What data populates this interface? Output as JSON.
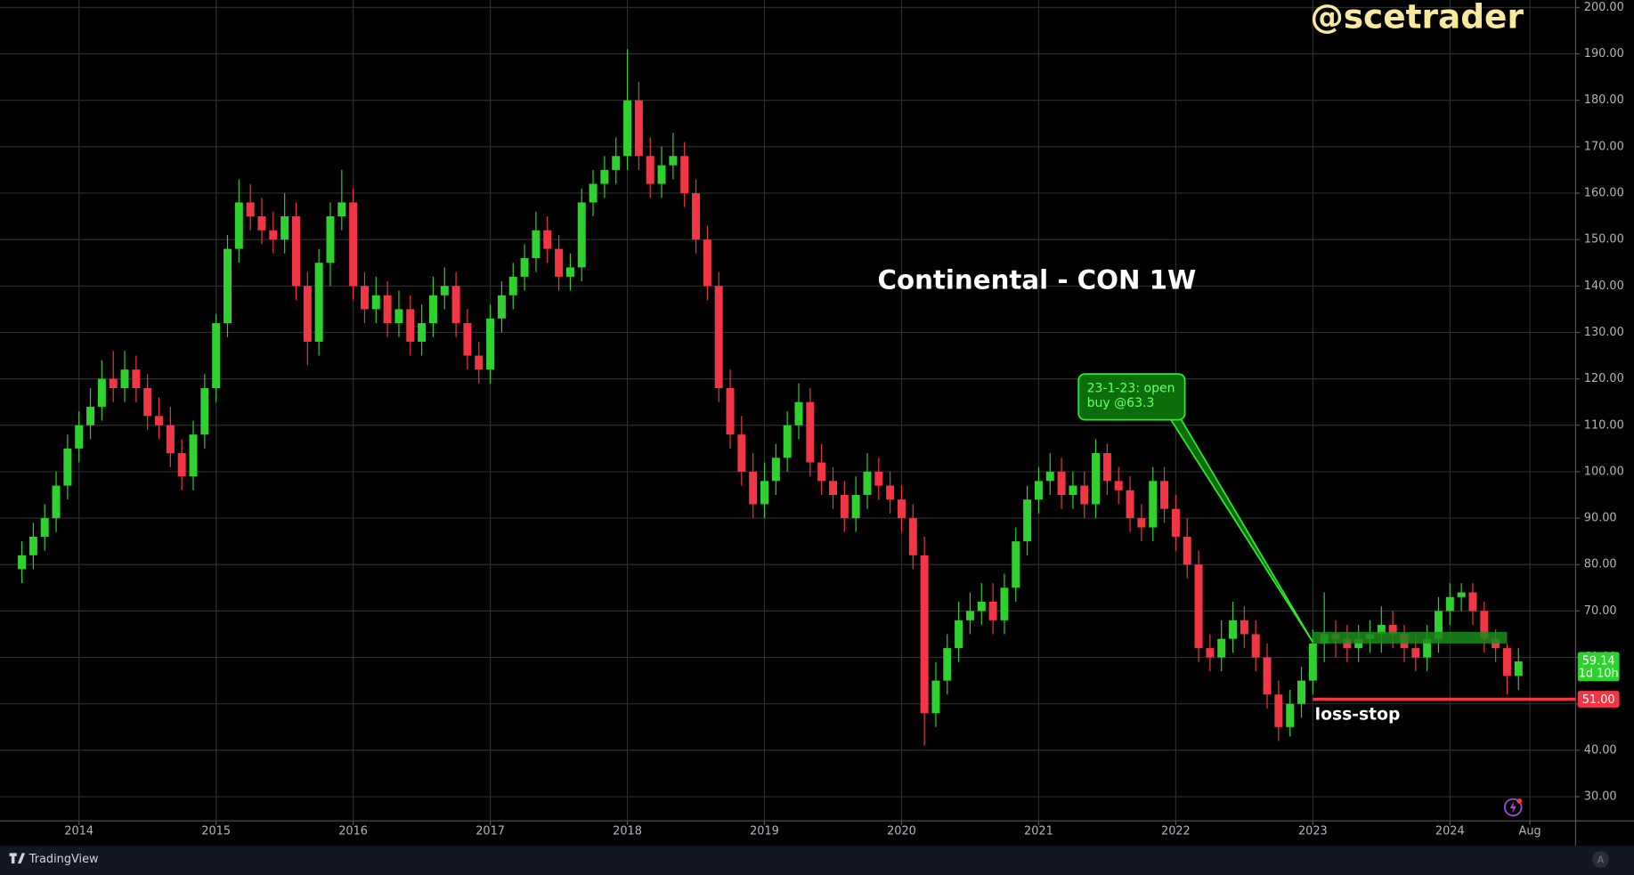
{
  "chart_data": {
    "type": "candlestick",
    "title": "Continental - CON 1W",
    "watermark": "@scetrader",
    "x": [
      "2013-08",
      "2013-09",
      "2013-10",
      "2013-11",
      "2013-12",
      "2014-01",
      "2014-02",
      "2014-03",
      "2014-04",
      "2014-05",
      "2014-06",
      "2014-07",
      "2014-08",
      "2014-09",
      "2014-10",
      "2014-11",
      "2014-12",
      "2015-01",
      "2015-02",
      "2015-03",
      "2015-04",
      "2015-05",
      "2015-06",
      "2015-07",
      "2015-08",
      "2015-09",
      "2015-10",
      "2015-11",
      "2015-12",
      "2016-01",
      "2016-02",
      "2016-03",
      "2016-04",
      "2016-05",
      "2016-06",
      "2016-07",
      "2016-08",
      "2016-09",
      "2016-10",
      "2016-11",
      "2016-12",
      "2017-01",
      "2017-02",
      "2017-03",
      "2017-04",
      "2017-05",
      "2017-06",
      "2017-07",
      "2017-08",
      "2017-09",
      "2017-10",
      "2017-11",
      "2017-12",
      "2018-01",
      "2018-02",
      "2018-03",
      "2018-04",
      "2018-05",
      "2018-06",
      "2018-07",
      "2018-08",
      "2018-09",
      "2018-10",
      "2018-11",
      "2018-12",
      "2019-01",
      "2019-02",
      "2019-03",
      "2019-04",
      "2019-05",
      "2019-06",
      "2019-07",
      "2019-08",
      "2019-09",
      "2019-10",
      "2019-11",
      "2019-12",
      "2020-01",
      "2020-02",
      "2020-03",
      "2020-04",
      "2020-05",
      "2020-06",
      "2020-07",
      "2020-08",
      "2020-09",
      "2020-10",
      "2020-11",
      "2020-12",
      "2021-01",
      "2021-02",
      "2021-03",
      "2021-04",
      "2021-05",
      "2021-06",
      "2021-07",
      "2021-08",
      "2021-09",
      "2021-10",
      "2021-11",
      "2021-12",
      "2022-01",
      "2022-02",
      "2022-03",
      "2022-04",
      "2022-05",
      "2022-06",
      "2022-07",
      "2022-08",
      "2022-09",
      "2022-10",
      "2022-11",
      "2022-12",
      "2023-01",
      "2023-02",
      "2023-03",
      "2023-04",
      "2023-05",
      "2023-06",
      "2023-07",
      "2023-08",
      "2023-09",
      "2023-10",
      "2023-11",
      "2023-12",
      "2024-01",
      "2024-02",
      "2024-03",
      "2024-04",
      "2024-05",
      "2024-06",
      "2024-07"
    ],
    "open": [
      79,
      82,
      86,
      90,
      97,
      105,
      110,
      114,
      120,
      118,
      122,
      118,
      112,
      110,
      104,
      99,
      108,
      118,
      132,
      148,
      158,
      155,
      152,
      150,
      155,
      140,
      128,
      145,
      155,
      158,
      140,
      135,
      138,
      132,
      135,
      128,
      132,
      138,
      140,
      132,
      125,
      122,
      133,
      138,
      142,
      146,
      152,
      148,
      142,
      144,
      158,
      162,
      165,
      168,
      180,
      168,
      162,
      166,
      168,
      160,
      150,
      140,
      118,
      108,
      100,
      93,
      98,
      103,
      110,
      115,
      102,
      98,
      95,
      90,
      95,
      100,
      97,
      94,
      90,
      82,
      48,
      55,
      62,
      68,
      70,
      72,
      68,
      75,
      85,
      94,
      98,
      100,
      95,
      97,
      93,
      104,
      98,
      96,
      90,
      88,
      98,
      92,
      86,
      80,
      62,
      60,
      64,
      68,
      65,
      60,
      52,
      45,
      50,
      55,
      63,
      65,
      64,
      62,
      64,
      65,
      67,
      65,
      62,
      60,
      64,
      70,
      73,
      74,
      70,
      64,
      62,
      56
    ],
    "high": [
      85,
      89,
      93,
      100,
      108,
      113,
      118,
      124,
      126,
      126,
      125,
      121,
      116,
      114,
      107,
      111,
      121,
      134,
      151,
      163,
      162,
      159,
      156,
      160,
      158,
      143,
      148,
      158,
      165,
      161,
      143,
      142,
      141,
      139,
      138,
      136,
      142,
      144,
      143,
      135,
      128,
      136,
      141,
      145,
      149,
      156,
      155,
      151,
      147,
      161,
      165,
      168,
      172,
      191,
      184,
      172,
      170,
      173,
      171,
      163,
      153,
      143,
      122,
      112,
      104,
      102,
      106,
      113,
      119,
      118,
      106,
      101,
      98,
      99,
      104,
      103,
      100,
      97,
      93,
      86,
      59,
      65,
      72,
      74,
      76,
      76,
      78,
      88,
      97,
      101,
      104,
      103,
      100,
      100,
      107,
      106,
      101,
      99,
      93,
      101,
      101,
      95,
      90,
      83,
      65,
      68,
      72,
      71,
      68,
      63,
      55,
      53,
      58,
      66,
      74,
      68,
      67,
      67,
      68,
      71,
      70,
      67,
      65,
      67,
      73,
      76,
      76,
      76,
      72,
      66,
      63,
      62
    ],
    "low": [
      76,
      79,
      83,
      87,
      94,
      102,
      107,
      111,
      115,
      115,
      115,
      109,
      107,
      101,
      96,
      96,
      105,
      115,
      129,
      145,
      152,
      149,
      147,
      147,
      137,
      123,
      125,
      140,
      152,
      137,
      132,
      132,
      129,
      129,
      125,
      125,
      129,
      135,
      129,
      122,
      119,
      119,
      130,
      135,
      139,
      143,
      145,
      139,
      139,
      141,
      155,
      159,
      162,
      165,
      165,
      159,
      159,
      163,
      157,
      147,
      137,
      115,
      105,
      97,
      90,
      90,
      95,
      100,
      107,
      99,
      95,
      92,
      87,
      87,
      92,
      94,
      91,
      87,
      79,
      41,
      45,
      52,
      59,
      65,
      67,
      65,
      65,
      72,
      82,
      91,
      95,
      92,
      92,
      90,
      90,
      95,
      93,
      87,
      85,
      85,
      89,
      83,
      77,
      59,
      57,
      57,
      61,
      62,
      57,
      49,
      42,
      43,
      47,
      52,
      59,
      60,
      59,
      59,
      61,
      61,
      62,
      59,
      57,
      57,
      61,
      67,
      70,
      67,
      61,
      59,
      52,
      53
    ],
    "close": [
      82,
      86,
      90,
      97,
      105,
      110,
      114,
      120,
      118,
      122,
      118,
      112,
      110,
      104,
      99,
      108,
      118,
      132,
      148,
      158,
      155,
      152,
      150,
      155,
      140,
      128,
      145,
      155,
      158,
      140,
      135,
      138,
      132,
      135,
      128,
      132,
      138,
      140,
      132,
      125,
      122,
      133,
      138,
      142,
      146,
      152,
      148,
      142,
      144,
      158,
      162,
      165,
      168,
      180,
      168,
      162,
      166,
      168,
      160,
      150,
      140,
      118,
      108,
      100,
      93,
      98,
      103,
      110,
      115,
      102,
      98,
      95,
      90,
      95,
      100,
      97,
      94,
      90,
      82,
      48,
      55,
      62,
      68,
      70,
      72,
      68,
      75,
      85,
      94,
      98,
      100,
      95,
      97,
      93,
      104,
      98,
      96,
      90,
      88,
      98,
      92,
      86,
      80,
      62,
      60,
      64,
      68,
      65,
      60,
      52,
      45,
      50,
      55,
      63,
      65,
      64,
      62,
      64,
      65,
      67,
      65,
      62,
      60,
      64,
      70,
      73,
      74,
      70,
      64,
      62,
      56,
      59.14
    ],
    "up_color": "#2fd12f",
    "down_color": "#f23645",
    "xlim": [
      "2013-07",
      "2024-12"
    ],
    "xticks": [
      {
        "value": "2014-01",
        "label": "2014"
      },
      {
        "value": "2015-01",
        "label": "2015"
      },
      {
        "value": "2016-01",
        "label": "2016"
      },
      {
        "value": "2017-01",
        "label": "2017"
      },
      {
        "value": "2018-01",
        "label": "2018"
      },
      {
        "value": "2019-01",
        "label": "2019"
      },
      {
        "value": "2020-01",
        "label": "2020"
      },
      {
        "value": "2021-01",
        "label": "2021"
      },
      {
        "value": "2022-01",
        "label": "2022"
      },
      {
        "value": "2023-01",
        "label": "2023"
      },
      {
        "value": "2024-01",
        "label": "2024"
      },
      {
        "value": "2024-08",
        "label": "Aug"
      }
    ],
    "ylim": [
      24.8,
      201.6
    ],
    "yticks": [
      {
        "value": 30,
        "label": "30.00"
      },
      {
        "value": 40,
        "label": "40.00"
      },
      {
        "value": 50,
        "label": "50.00"
      },
      {
        "value": 60,
        "label": "60.00"
      },
      {
        "value": 70,
        "label": "70.00"
      },
      {
        "value": 80,
        "label": "80.00"
      },
      {
        "value": 90,
        "label": "90.00"
      },
      {
        "value": 100,
        "label": "100.00"
      },
      {
        "value": 110,
        "label": "110.00"
      },
      {
        "value": 120,
        "label": "120.00"
      },
      {
        "value": 130,
        "label": "130.00"
      },
      {
        "value": 140,
        "label": "140.00"
      },
      {
        "value": 150,
        "label": "150.00"
      },
      {
        "value": 160,
        "label": "160.00"
      },
      {
        "value": 170,
        "label": "170.00"
      },
      {
        "value": 180,
        "label": "180.00"
      },
      {
        "value": 190,
        "label": "190.00"
      },
      {
        "value": 200,
        "label": "200.00"
      }
    ],
    "grid": true,
    "last_price": 59.14,
    "countdown": "1d 10h",
    "zone": {
      "from": "2023-01",
      "to": "2024-06",
      "low": 63,
      "high": 65.5,
      "color": "#1c8a1c"
    },
    "stop": {
      "value": 51,
      "label": "51.00",
      "from": "2023-01",
      "text": "loss-stop",
      "color": "#f23645"
    },
    "callout": {
      "text": [
        "23-1-23: open",
        "buy @63.3"
      ],
      "x": "2023-01",
      "y": 63.3
    }
  },
  "footer": {
    "brand": "TradingView",
    "auto_button": "A"
  }
}
